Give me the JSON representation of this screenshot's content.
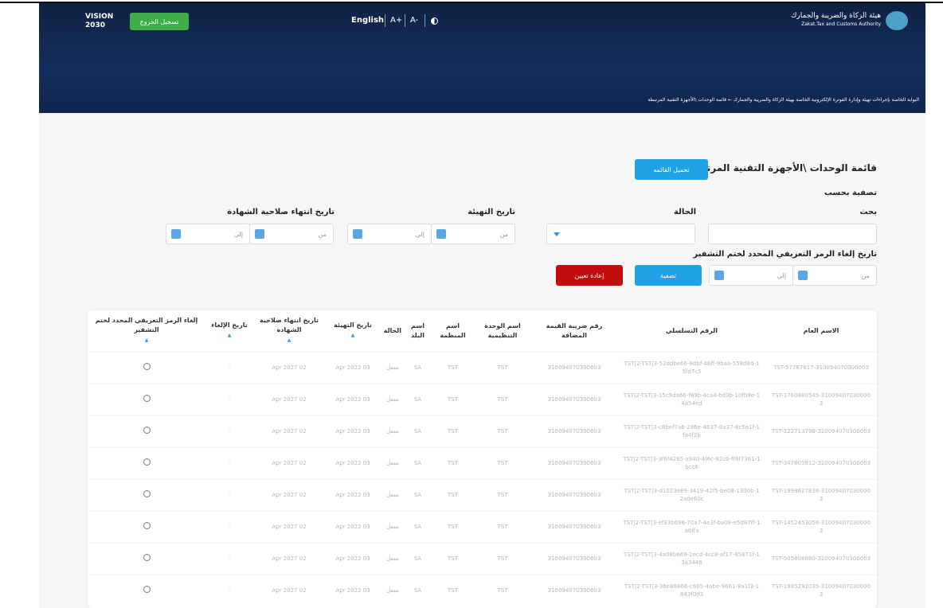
{
  "header": {
    "authority_ar": "هيئة الزكاة والضريبة والجمارك",
    "authority_en": "Zakat,Tax and Customs Authority",
    "language": "English",
    "font_up": "A+",
    "font_down": "A-",
    "vision": "VISION 2030",
    "logout": "تسجيل الخروج"
  },
  "breadcrumb": {
    "parent": "البوابة الخاصة بإجراءات تهيئة وإدارة الفوترة الإلكترونية الخاصة بهيئة الزكاة والضريبة والجمارك",
    "current": "قائمة الوحدات \\الأجهزة التقنية المرتبطة"
  },
  "page": {
    "title": "قائمة الوحدات \\الأجهزة التقنية المرتبطة",
    "download": "تحميل القائمه",
    "filter_by": "تصفية بحسب"
  },
  "filters": {
    "search": "بحث",
    "status": "الحالة",
    "init_date": "تاريخ التهيئة",
    "cert_expiry": "تاريخ انتهاء صلاحية الشهادة",
    "revoke_date": "تاريخ إلغاء الرمز التعريفي المحدد لختم التشفير",
    "from": "من",
    "to": "إلى",
    "apply": "تصفية",
    "reset": "إعادة تعيين"
  },
  "table": {
    "headers": [
      "الاسم العام",
      "الرقم التسلسلي",
      "رقم ضريبة القيمة المضافة",
      "اسم الوحدة التنظيمية",
      "اسم المنظمة",
      "اسم البلد",
      "الحالة",
      "تاريخ التهيئة",
      "تاريخ انتهاء صلاحية الشهادة",
      "تاريخ الإلغاء",
      "إلغاء الرمز التعريفي المحدد لختم التشفير"
    ],
    "rows": [
      [
        "TST-57767817-310094070300003",
        "1-TST|2-TST|3-52ddbe66-8dbf-46ff-9baa-558d8d5fd7c5",
        "310094070300003",
        "TST",
        "TST",
        "SA",
        "مفعل",
        "03 Apr 2022",
        "02 Apr 2027",
        "-"
      ],
      [
        "TST-1760880545-310094070300003",
        "1-TST|2-TST|3-15c9da66-f89b-4ca4-bd3b-10fb9e4a54ed",
        "310094070300003",
        "TST",
        "TST",
        "SA",
        "مفعل",
        "03 Apr 2022",
        "02 Apr 2027",
        "-"
      ],
      [
        "TST-122713798-310094070300003",
        "1-TST|2-TST|3-c8bef7a6-286e-4637-8a37-8c5e1ffa4f2b",
        "310094070300003",
        "TST",
        "TST",
        "SA",
        "مفعل",
        "03 Apr 2022",
        "02 Apr 2027",
        "-"
      ],
      [
        "TST-347805912-310094070300003",
        "1-TST|2-TST|3-3f6f4265-a940-4f6c-82cb-ff6f7361bcc6",
        "310094070300003",
        "TST",
        "TST",
        "SA",
        "مفعل",
        "03 Apr 2022",
        "02 Apr 2027",
        "-"
      ],
      [
        "TST-1998627838-310094070300003",
        "1-TST|2-TST|3-d1023e89-3419-42f5-be08-1300b2a0e60c",
        "310094070300003",
        "TST",
        "TST",
        "SA",
        "مفعل",
        "03 Apr 2022",
        "02 Apr 2027",
        "-"
      ],
      [
        "TST-1452453058-310094070300003",
        "1-TST|2-TST|3-ef83b696-70a7-4e3f-ba08-e5d87ffa6ffa",
        "310094070300003",
        "TST",
        "TST",
        "SA",
        "مفعل",
        "03 Apr 2022",
        "02 Apr 2027",
        "-"
      ],
      [
        "TST-505808880-310094070300003",
        "1-TST|2-TST|3-4a08b669-2ecd-4cc8-af17-85871f3a3446",
        "310094070300003",
        "TST",
        "TST",
        "SA",
        "مفعل",
        "03 Apr 2022",
        "02 Apr 2027",
        "-"
      ],
      [
        "TST-1985292035-310094070300003",
        "1-TST|2-TST|3-36e86866-c605-4abe-9661-8a1f3843f0d3",
        "310094070300003",
        "TST",
        "TST",
        "SA",
        "مفعل",
        "03 Apr 2022",
        "02 Apr 2027",
        "-"
      ]
    ]
  }
}
